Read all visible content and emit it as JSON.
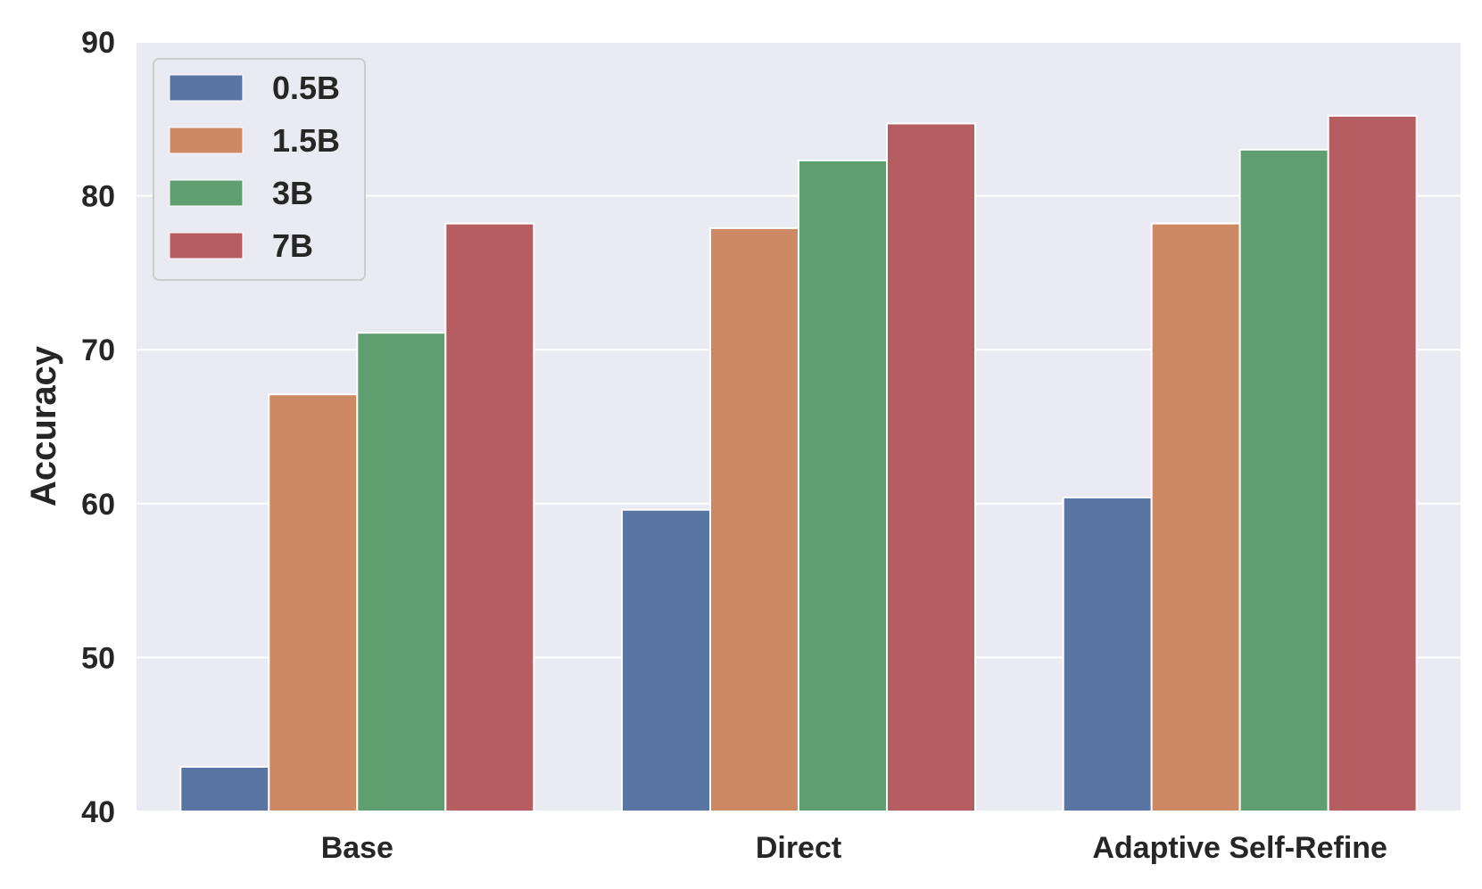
{
  "chart_data": {
    "type": "bar",
    "title": "",
    "xlabel": "",
    "ylabel": "Accuracy",
    "ylim": [
      40,
      90
    ],
    "yticks": [
      "40",
      "50",
      "60",
      "70",
      "80",
      "90"
    ],
    "categories": [
      "Base",
      "Direct",
      "Adaptive Self-Refine"
    ],
    "series": [
      {
        "name": "0.5B",
        "color": "#5975a4",
        "values": [
          42.9,
          59.6,
          60.4
        ]
      },
      {
        "name": "1.5B",
        "color": "#cc8963",
        "values": [
          67.1,
          77.9,
          78.2
        ]
      },
      {
        "name": "3B",
        "color": "#5f9e6e",
        "values": [
          71.1,
          82.3,
          83.0
        ]
      },
      {
        "name": "7B",
        "color": "#b55d60",
        "values": [
          78.2,
          84.7,
          85.2
        ]
      }
    ],
    "grid": true,
    "legend_position": "top-left",
    "plot_background": "#eaeaf2",
    "grid_color": "#ffffff"
  }
}
